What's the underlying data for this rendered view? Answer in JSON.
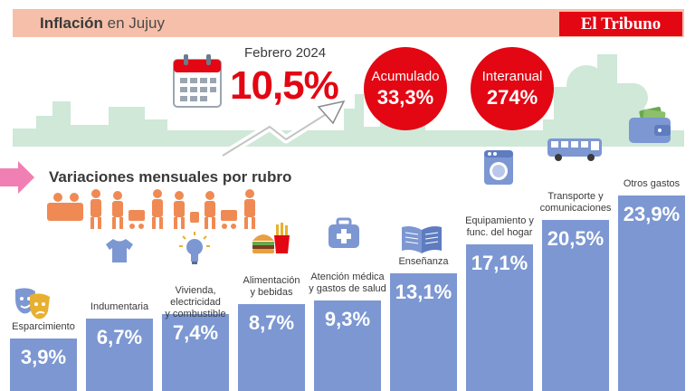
{
  "header": {
    "title_bold": "Inflación",
    "title_rest": " en Jujuy"
  },
  "brand": {
    "name": "El Tribuno"
  },
  "period": "Febrero 2024",
  "monthly": "10,5%",
  "accumulated": {
    "label": "Acumulado",
    "value": "33,3%"
  },
  "interannual": {
    "label": "Interanual",
    "value": "274%"
  },
  "section_title": "Variaciones mensuales por rubro",
  "colors": {
    "accent": "#e30613",
    "bar": "#7c97d2",
    "header": "#f6bfa9",
    "skyline": "#cfe8d8",
    "people": "#f08a54"
  },
  "chart_data": {
    "type": "bar",
    "categories": [
      "Esparcimiento",
      "Indumentaria",
      "Vivienda, electricidad y combustible",
      "Alimentación y bebidas",
      "Atención médica y gastos de salud",
      "Enseñanza",
      "Equipamiento y func. del hogar",
      "Transporte y comunicaciones",
      "Otros gastos"
    ],
    "category_lines": [
      [
        "Esparcimiento"
      ],
      [
        "Indumentaria"
      ],
      [
        "Vivienda, electricidad",
        "y combustible"
      ],
      [
        "Alimentación",
        "y bebidas"
      ],
      [
        "Atención médica",
        "y gastos de salud"
      ],
      [
        "Enseñanza"
      ],
      [
        "Equipamiento y",
        "func. del hogar"
      ],
      [
        "Transporte y",
        "comunicaciones"
      ],
      [
        "Otros gastos"
      ]
    ],
    "values": [
      3.9,
      6.7,
      7.4,
      8.7,
      9.3,
      13.1,
      17.1,
      20.5,
      23.9
    ],
    "value_labels": [
      "3,9%",
      "6,7%",
      "7,4%",
      "8,7%",
      "9,3%",
      "13,1%",
      "17,1%",
      "20,5%",
      "23,9%"
    ],
    "icons": [
      "theater-masks-icon",
      "tshirt-icon",
      "lightbulb-icon",
      "burger-fries-icon",
      "first-aid-kit-icon",
      "open-book-icon",
      "washing-machine-icon",
      "bus-icon",
      "wallet-icon"
    ]
  }
}
